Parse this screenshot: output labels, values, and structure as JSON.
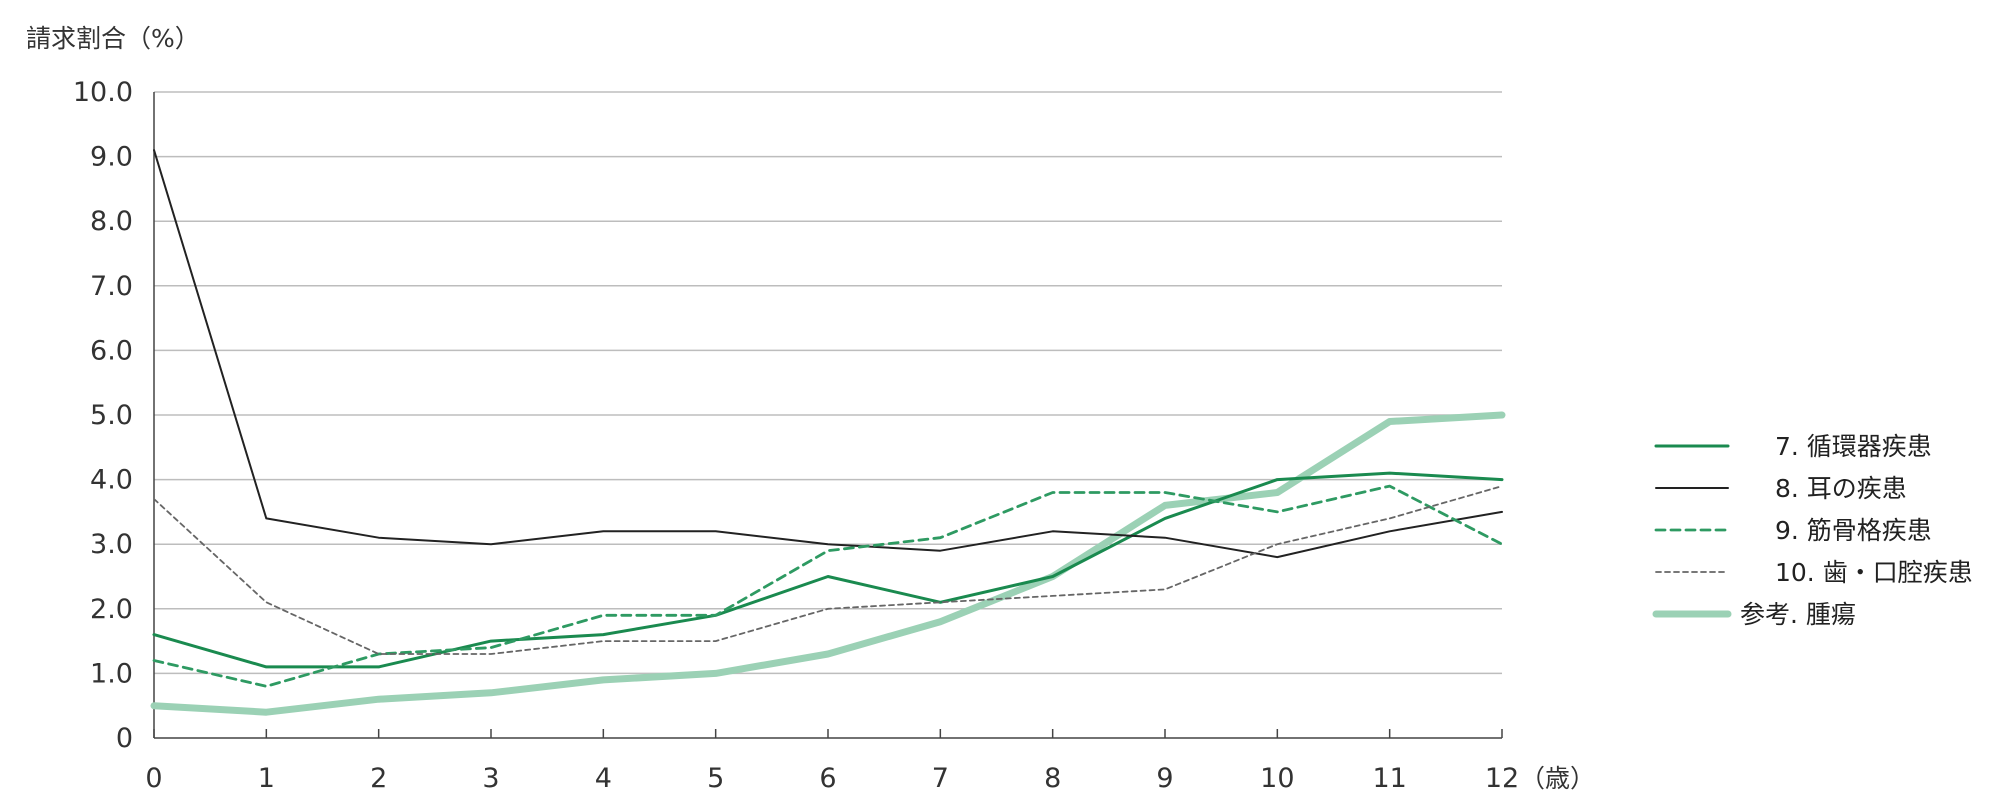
{
  "chart_data": {
    "type": "line",
    "ylabel": "請求割合（%）",
    "x_unit": "（歳）",
    "x": [
      0,
      1,
      2,
      3,
      4,
      5,
      6,
      7,
      8,
      9,
      10,
      11,
      12
    ],
    "x_tick_labels": [
      "0",
      "1",
      "2",
      "3",
      "4",
      "5",
      "6",
      "7",
      "8",
      "9",
      "10",
      "11",
      "12"
    ],
    "ylim": [
      0,
      10
    ],
    "y_ticks": [
      0,
      1,
      2,
      3,
      4,
      5,
      6,
      7,
      8,
      9,
      10
    ],
    "y_tick_labels": [
      "0",
      "1.0",
      "2.0",
      "3.0",
      "4.0",
      "5.0",
      "6.0",
      "7.0",
      "8.0",
      "9.0",
      "10.0"
    ],
    "grid": true,
    "legend_position": "right",
    "series": [
      {
        "name": "7.  循環器疾患",
        "values": [
          1.6,
          1.1,
          1.1,
          1.5,
          1.6,
          1.9,
          2.5,
          2.1,
          2.5,
          3.4,
          4.0,
          4.1,
          4.0
        ],
        "color": "#1a8a4f",
        "style": "solid"
      },
      {
        "name": "8.  耳の疾患",
        "values": [
          9.1,
          3.4,
          3.1,
          3.0,
          3.2,
          3.2,
          3.0,
          2.9,
          3.2,
          3.1,
          2.8,
          3.2,
          3.5
        ],
        "color": "#222222",
        "style": "solid-thin"
      },
      {
        "name": "9.  筋骨格疾患",
        "values": [
          1.2,
          0.8,
          1.3,
          1.4,
          1.9,
          1.9,
          2.9,
          3.1,
          3.8,
          3.8,
          3.5,
          3.9,
          3.0
        ],
        "color": "#2e9a62",
        "style": "dashed"
      },
      {
        "name": "10.  歯・口腔疾患",
        "values": [
          3.7,
          2.1,
          1.3,
          1.3,
          1.5,
          1.5,
          2.0,
          2.1,
          2.2,
          2.3,
          3.0,
          3.4,
          3.9
        ],
        "color": "#666666",
        "style": "dotted"
      },
      {
        "name": "参考.  腫瘍",
        "values": [
          0.5,
          0.4,
          0.6,
          0.7,
          0.9,
          1.0,
          1.3,
          1.8,
          2.5,
          3.6,
          3.8,
          4.9,
          5.0
        ],
        "color": "#9bd1b5",
        "style": "thick"
      }
    ]
  }
}
